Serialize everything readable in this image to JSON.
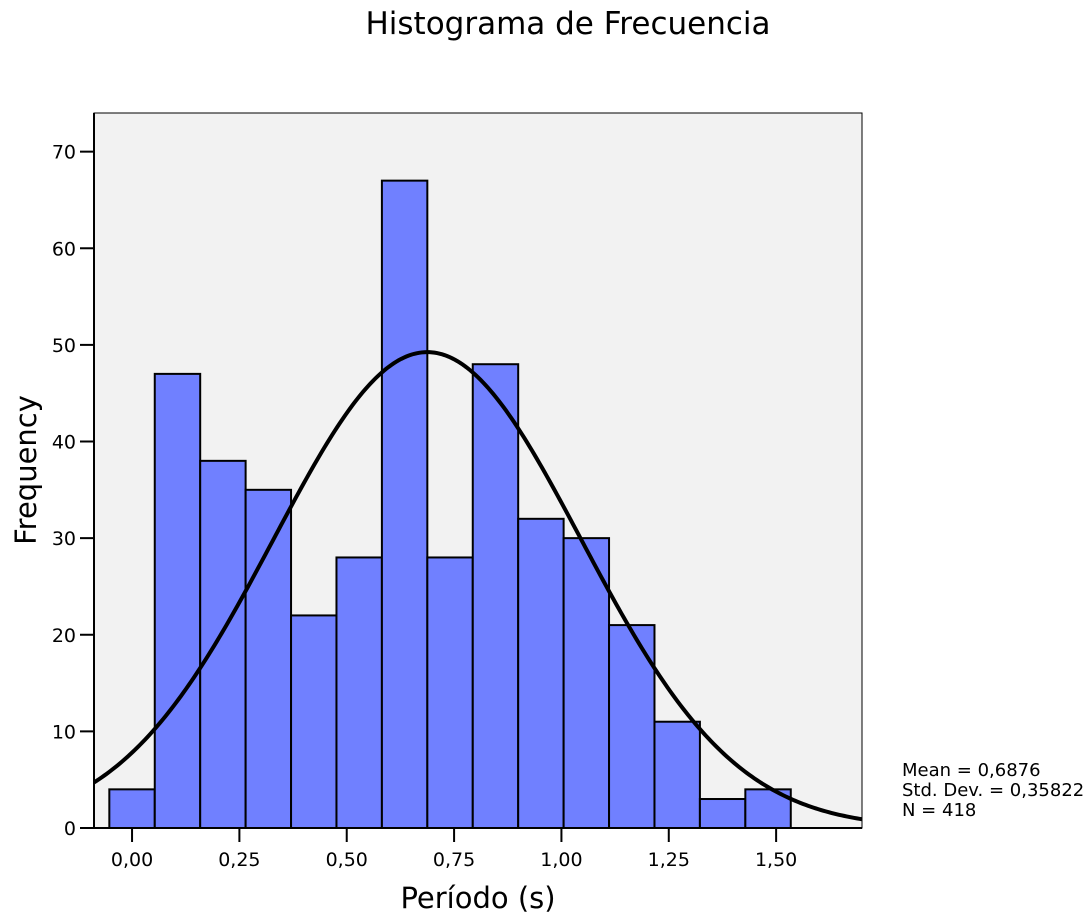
{
  "chart_data": {
    "type": "bar",
    "title": "Histograma de Frecuencia",
    "xlabel": "Período (s)",
    "ylabel": "Frequency",
    "xlim": [
      -0.0886,
      1.7
    ],
    "ylim": [
      0,
      74
    ],
    "bin_width": 0.1058,
    "bin_start": -0.0529,
    "values": [
      4,
      47,
      38,
      35,
      22,
      28,
      67,
      28,
      48,
      32,
      30,
      21,
      11,
      3,
      4
    ],
    "x_ticks": [
      {
        "value": 0.0,
        "label": "0,00"
      },
      {
        "value": 0.25,
        "label": "0,25"
      },
      {
        "value": 0.5,
        "label": "0,50"
      },
      {
        "value": 0.75,
        "label": "0,75"
      },
      {
        "value": 1.0,
        "label": "1,00"
      },
      {
        "value": 1.25,
        "label": "1,25"
      },
      {
        "value": 1.5,
        "label": "1,50"
      }
    ],
    "y_ticks": [
      {
        "value": 0,
        "label": "0"
      },
      {
        "value": 10,
        "label": "10"
      },
      {
        "value": 20,
        "label": "20"
      },
      {
        "value": 30,
        "label": "30"
      },
      {
        "value": 40,
        "label": "40"
      },
      {
        "value": 50,
        "label": "50"
      },
      {
        "value": 60,
        "label": "60"
      },
      {
        "value": 70,
        "label": "70"
      }
    ],
    "normal_curve": {
      "mean": 0.6876,
      "std": 0.35822,
      "n": 418
    },
    "stats": [
      "Mean = 0,6876",
      "Std. Dev. = 0,35822",
      "N = 418"
    ],
    "legend": "none",
    "grid": false,
    "colors": {
      "bar_fill": "#7080ff",
      "bar_stroke": "#000000",
      "plot_bg": "#f2f2f2",
      "curve": "#000000"
    }
  }
}
